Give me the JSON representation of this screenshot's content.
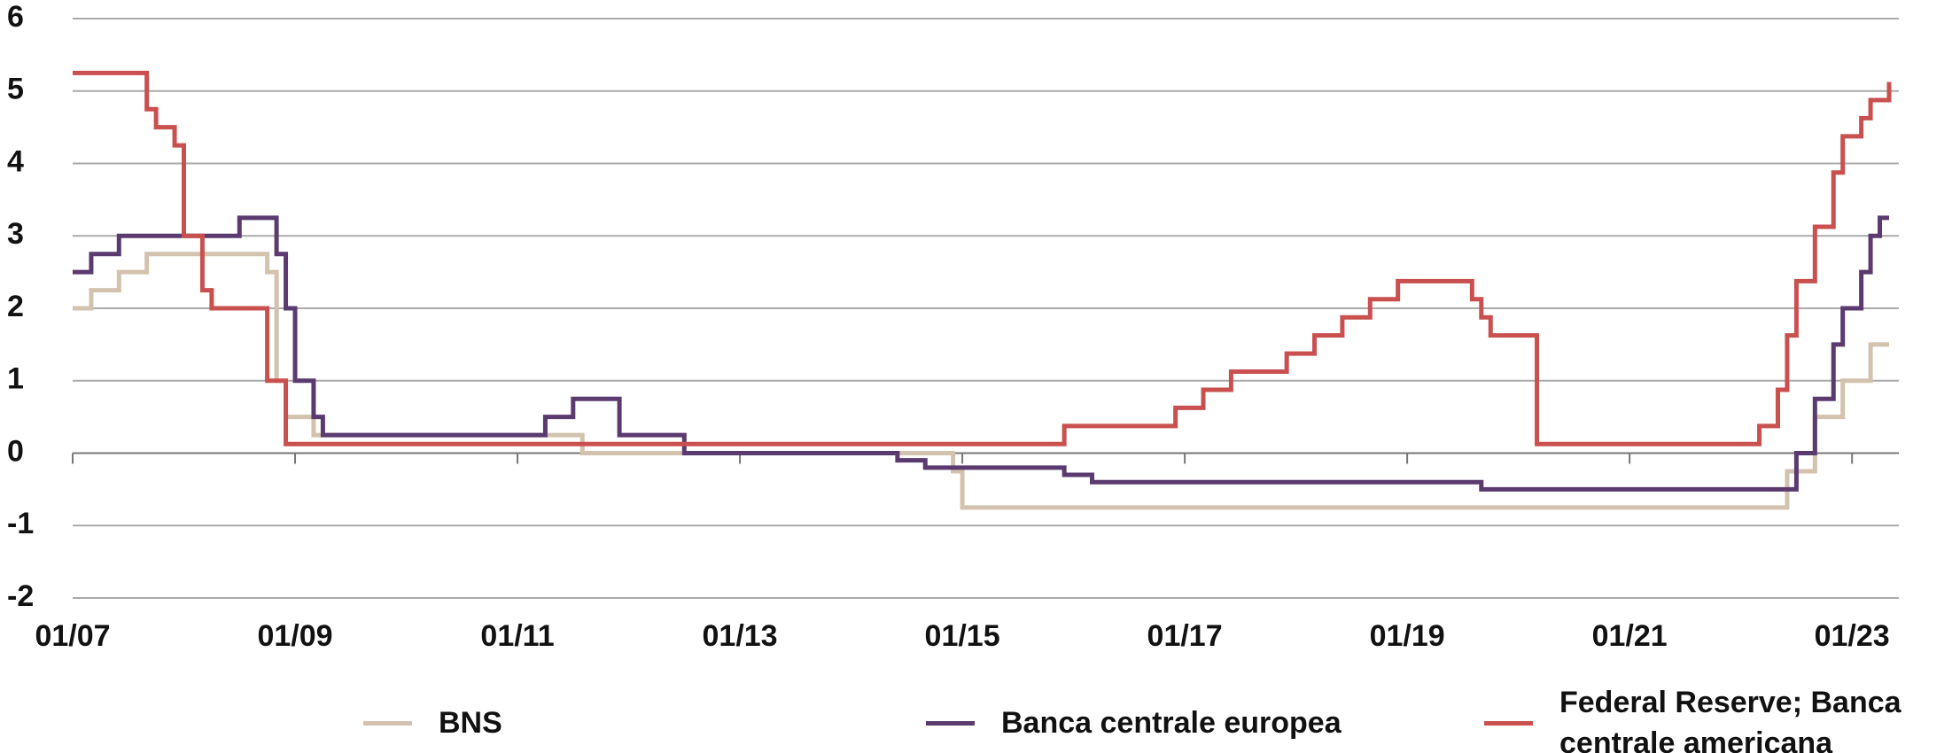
{
  "chart_data": {
    "type": "step",
    "xlim": [
      "01/07",
      "05/23"
    ],
    "xticks": [
      "01/07",
      "01/09",
      "01/11",
      "01/13",
      "01/15",
      "01/17",
      "01/19",
      "01/21",
      "01/23"
    ],
    "ylim": [
      -2,
      6
    ],
    "yticks": [
      -2,
      -1,
      0,
      1,
      2,
      3,
      4,
      5,
      6
    ],
    "grid": true,
    "series": [
      {
        "name": "BNS",
        "color": "#d3c2ad",
        "x": [
          "01/07",
          "03/07",
          "06/07",
          "09/07",
          "10/08",
          "11/08",
          "12/08",
          "03/09",
          "08/11",
          "12/14",
          "01/15",
          "06/22",
          "09/22",
          "12/22",
          "03/23",
          "05/23"
        ],
        "values": [
          2.0,
          2.25,
          2.5,
          2.75,
          2.5,
          1.0,
          0.5,
          0.25,
          0,
          -0.25,
          -0.75,
          -0.25,
          0.5,
          1.0,
          1.5,
          1.5
        ]
      },
      {
        "name": "Banca centrale europea",
        "color": "#5b3a70",
        "x": [
          "01/07",
          "03/07",
          "06/07",
          "07/08",
          "11/08",
          "12/08",
          "01/09",
          "03/09",
          "04/09",
          "04/11",
          "07/11",
          "12/11",
          "07/12",
          "06/14",
          "09/14",
          "12/15",
          "03/16",
          "09/19",
          "07/22",
          "09/22",
          "11/22",
          "12/22",
          "02/23",
          "03/23",
          "04/23",
          "05/23"
        ],
        "values": [
          2.5,
          2.75,
          3.0,
          3.25,
          2.75,
          2.0,
          1.0,
          0.5,
          0.25,
          0.5,
          0.75,
          0.25,
          0,
          -0.1,
          -0.2,
          -0.3,
          -0.4,
          -0.5,
          0,
          0.75,
          1.5,
          2.0,
          2.5,
          3.0,
          3.25,
          3.25
        ]
      },
      {
        "name": "Federal Reserve; Banca centrale americana",
        "color": "#c9504f",
        "x": [
          "01/07",
          "09/07",
          "10/07",
          "12/07",
          "01/08",
          "03/08",
          "04/08",
          "10/08",
          "12/08",
          "12/15",
          "12/16",
          "03/17",
          "06/17",
          "12/17",
          "03/18",
          "06/18",
          "09/18",
          "12/18",
          "08/19",
          "09/19",
          "10/19",
          "03/20",
          "03/22",
          "05/22",
          "06/22",
          "07/22",
          "09/22",
          "11/22",
          "12/22",
          "02/23",
          "03/23",
          "05/23"
        ],
        "values": [
          5.25,
          4.75,
          4.5,
          4.25,
          3.0,
          2.25,
          2.0,
          1.0,
          0.125,
          0.375,
          0.625,
          0.875,
          1.125,
          1.375,
          1.625,
          1.875,
          2.125,
          2.375,
          2.125,
          1.875,
          1.625,
          0.125,
          0.375,
          0.875,
          1.625,
          2.375,
          3.125,
          3.875,
          4.375,
          4.625,
          4.875,
          5.125
        ]
      }
    ]
  }
}
